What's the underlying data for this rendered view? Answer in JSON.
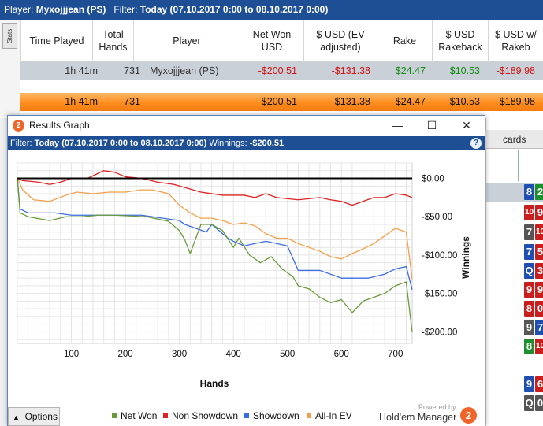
{
  "topbar": {
    "player_label": "Player:",
    "player_value": "Myxojjjean (PS)",
    "filter_label": "Filter:",
    "filter_value": "Today (07.10.2017 0:00 to 08.10.2017 0:00)"
  },
  "stats": {
    "tab_label": "Stats",
    "columns": [
      "Time Played",
      "Total Hands",
      "Player",
      "Net Won USD",
      "$ USD (EV adjusted)",
      "Rake",
      "$ USD Rakeback",
      "$ USD w/ Rakeb"
    ],
    "row": {
      "time": "1h 41m",
      "hands": "731",
      "player": "Myxojjjean (PS)",
      "net_won": "-$200.51",
      "ev_adjusted": "-$131.38",
      "rake": "$24.47",
      "rakeback": "$10.53",
      "with_rakeback": "-$189.98"
    },
    "total": {
      "time": "1h 41m",
      "hands": "731",
      "net_won": "-$200.51",
      "ev_adjusted": "-$131.38",
      "rake": "$24.47",
      "rakeback": "$10.53",
      "with_rakeback": "-$189.98"
    }
  },
  "right_panel": {
    "tab_label": "cards",
    "cards": [
      [
        "8",
        "2"
      ],
      [
        "10",
        "9"
      ],
      [
        "7",
        "10"
      ],
      [
        "7",
        "5"
      ],
      [
        "Q",
        "3"
      ],
      [
        "9",
        "9"
      ],
      [
        "8",
        "0"
      ],
      [
        "9",
        "7"
      ],
      [
        "8",
        "10"
      ],
      [
        "9",
        "6"
      ],
      [
        "Q",
        "0"
      ]
    ],
    "card_colors": [
      [
        "#1f4fb0",
        "#1e8f2e"
      ],
      [
        "#c81e1e",
        "#c81e1e"
      ],
      [
        "#555555",
        "#c81e1e"
      ],
      [
        "#1f4fb0",
        "#c81e1e"
      ],
      [
        "#1f4fb0",
        "#c81e1e"
      ],
      [
        "#c81e1e",
        "#c81e1e"
      ],
      [
        "#c81e1e",
        "#c81e1e"
      ],
      [
        "#555555",
        "#1f4fb0"
      ],
      [
        "#1e8f2e",
        "#c81e1e"
      ],
      [
        "#1f4fb0",
        "#c81e1e"
      ],
      [
        "#555555",
        "#555555"
      ]
    ]
  },
  "graph_window": {
    "title": "Results Graph",
    "logo_digit": "2",
    "filter_label": "Filter:",
    "filter_value": "Today (07.10.2017 0:00 to 08.10.2017 0:00)",
    "winnings_label": "Winnings:",
    "winnings_value": "-$200.51",
    "help": "?",
    "options_label": "Options",
    "powered_by": "Powered by",
    "brand": "Hold'em Manager"
  },
  "chart_data": {
    "type": "line",
    "xlabel": "Hands",
    "ylabel": "Winnings",
    "xlim": [
      0,
      731
    ],
    "ylim": [
      -215,
      20
    ],
    "xticks": [
      100,
      200,
      300,
      400,
      500,
      600,
      700
    ],
    "yticks": [
      0,
      -50,
      -100,
      -150,
      -200
    ],
    "ytick_labels": [
      "$0.00",
      "-$50.00",
      "-$100.00",
      "-$150.00",
      "-$200.00"
    ],
    "grid": true,
    "legend_position": "bottom",
    "series": [
      {
        "name": "Net Won",
        "color": "#6a9a3b",
        "x": [
          0,
          5,
          20,
          60,
          90,
          120,
          150,
          180,
          210,
          240,
          280,
          300,
          310,
          320,
          340,
          360,
          380,
          400,
          410,
          430,
          450,
          470,
          490,
          510,
          520,
          540,
          560,
          580,
          600,
          620,
          640,
          660,
          680,
          700,
          720,
          731
        ],
        "y": [
          0,
          -45,
          -50,
          -55,
          -50,
          -50,
          -48,
          -48,
          -49,
          -50,
          -56,
          -68,
          -80,
          -98,
          -60,
          -60,
          -68,
          -90,
          -78,
          -100,
          -110,
          -102,
          -118,
          -128,
          -140,
          -144,
          -155,
          -162,
          -158,
          -175,
          -160,
          -155,
          -150,
          -140,
          -135,
          -200.51
        ]
      },
      {
        "name": "Non Showdown",
        "color": "#e02020",
        "x": [
          0,
          10,
          40,
          60,
          80,
          100,
          130,
          160,
          180,
          200,
          230,
          260,
          290,
          310,
          340,
          380,
          420,
          440,
          460,
          480,
          520,
          560,
          580,
          600,
          620,
          640,
          660,
          680,
          700,
          720,
          731
        ],
        "y": [
          0,
          -3,
          -5,
          -8,
          -5,
          0,
          0,
          10,
          8,
          2,
          0,
          -5,
          -8,
          -12,
          -18,
          -22,
          -22,
          -25,
          -20,
          -25,
          -28,
          -25,
          -28,
          -30,
          -35,
          -30,
          -25,
          -25,
          -20,
          -22,
          -25
        ]
      },
      {
        "name": "Showdown",
        "color": "#3a6ee0",
        "x": [
          0,
          5,
          20,
          70,
          100,
          200,
          230,
          300,
          310,
          350,
          360,
          390,
          400,
          420,
          460,
          500,
          520,
          560,
          600,
          650,
          680,
          700,
          720,
          731
        ],
        "y": [
          0,
          -40,
          -45,
          -45,
          -48,
          -48,
          -48,
          -55,
          -60,
          -70,
          -60,
          -78,
          -82,
          -88,
          -82,
          -88,
          -120,
          -120,
          -130,
          -130,
          -125,
          -118,
          -115,
          -145
        ]
      },
      {
        "name": "All-In EV",
        "color": "#f4a04a",
        "x": [
          0,
          10,
          30,
          60,
          90,
          110,
          140,
          170,
          200,
          230,
          250,
          280,
          300,
          320,
          340,
          360,
          380,
          400,
          420,
          440,
          460,
          480,
          500,
          520,
          540,
          560,
          580,
          600,
          620,
          640,
          660,
          680,
          700,
          720,
          731
        ],
        "y": [
          0,
          -15,
          -28,
          -30,
          -22,
          -18,
          -20,
          -18,
          -18,
          -15,
          -15,
          -20,
          -35,
          -45,
          -52,
          -52,
          -55,
          -60,
          -58,
          -62,
          -72,
          -78,
          -78,
          -85,
          -90,
          -95,
          -102,
          -105,
          -98,
          -92,
          -85,
          -75,
          -65,
          -70,
          -131.38
        ]
      }
    ]
  }
}
